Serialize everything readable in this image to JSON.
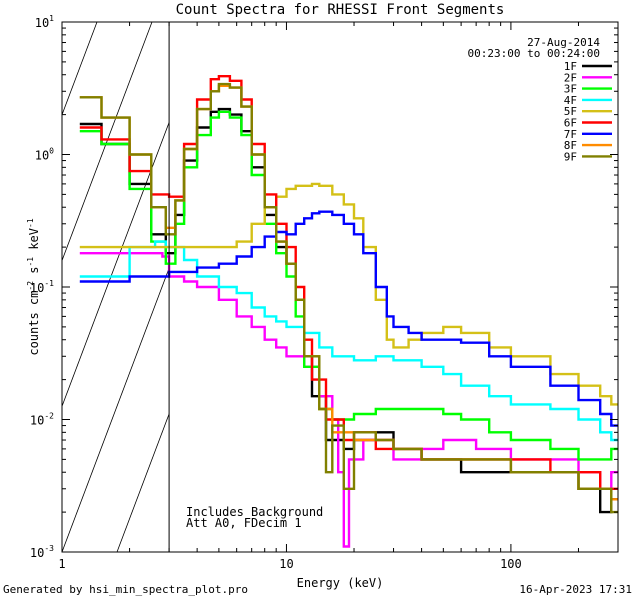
{
  "chart_data": {
    "type": "line",
    "title": "Count Spectra for RHESSI Front Segments",
    "xlabel": "Energy (keV)",
    "ylabel_parts": [
      "counts cm",
      "-2",
      " s",
      "-1",
      " keV",
      "-1"
    ],
    "xscale": "log",
    "yscale": "log",
    "xlim": [
      1,
      300
    ],
    "ylim": [
      0.001,
      10
    ],
    "x_ticks": [
      {
        "value": 1,
        "label": "1"
      },
      {
        "value": 10,
        "label": "10"
      },
      {
        "value": 100,
        "label": "100"
      }
    ],
    "y_ticks": [
      {
        "value": 0.001,
        "base": "10",
        "exp": "-3"
      },
      {
        "value": 0.01,
        "base": "10",
        "exp": "-2"
      },
      {
        "value": 0.1,
        "base": "10",
        "exp": "-1"
      },
      {
        "value": 1,
        "base": "10",
        "exp": "0"
      },
      {
        "value": 10,
        "base": "10",
        "exp": "1"
      }
    ],
    "date": "27-Aug-2014",
    "time_range": "00:23:00 to 00:24:00",
    "hatched_region_below_keV": 3,
    "annotations": [
      "Includes Background",
      "Att A0, FDecim 1"
    ],
    "series": [
      {
        "name": "1F",
        "color": "#000000",
        "points": [
          [
            1.2,
            1.7
          ],
          [
            1.5,
            1.2
          ],
          [
            2.0,
            0.6
          ],
          [
            2.5,
            0.25
          ],
          [
            2.9,
            0.18
          ],
          [
            3.2,
            0.35
          ],
          [
            3.5,
            0.9
          ],
          [
            4.0,
            1.6
          ],
          [
            4.6,
            2.1
          ],
          [
            5.0,
            2.2
          ],
          [
            5.6,
            2.0
          ],
          [
            6.3,
            1.5
          ],
          [
            7.0,
            0.8
          ],
          [
            8.0,
            0.35
          ],
          [
            9.0,
            0.2
          ],
          [
            10.0,
            0.15
          ],
          [
            11.0,
            0.08
          ],
          [
            12.0,
            0.03
          ],
          [
            13.0,
            0.015
          ],
          [
            15.0,
            0.007
          ],
          [
            18.0,
            0.006
          ],
          [
            20.0,
            0.007
          ],
          [
            25.0,
            0.008
          ],
          [
            30.0,
            0.006
          ],
          [
            40.0,
            0.005
          ],
          [
            50.0,
            0.005
          ],
          [
            60.0,
            0.004
          ],
          [
            80.0,
            0.004
          ],
          [
            100.0,
            0.004
          ],
          [
            150.0,
            0.004
          ],
          [
            200.0,
            0.003
          ],
          [
            250.0,
            0.002
          ],
          [
            280.0,
            0.0025
          ]
        ]
      },
      {
        "name": "2F",
        "color": "#ff00ff",
        "points": [
          [
            1.2,
            0.18
          ],
          [
            2.0,
            0.18
          ],
          [
            2.8,
            0.17
          ],
          [
            3.0,
            0.12
          ],
          [
            3.5,
            0.11
          ],
          [
            4.0,
            0.1
          ],
          [
            5.0,
            0.08
          ],
          [
            6.0,
            0.06
          ],
          [
            7.0,
            0.05
          ],
          [
            8.0,
            0.04
          ],
          [
            9.0,
            0.035
          ],
          [
            10.0,
            0.03
          ],
          [
            12.0,
            0.025
          ],
          [
            14.0,
            0.015
          ],
          [
            16.0,
            0.01
          ],
          [
            17.0,
            0.004
          ],
          [
            18.0,
            0.0011
          ],
          [
            19.0,
            0.005
          ],
          [
            22.0,
            0.007
          ],
          [
            30.0,
            0.005
          ],
          [
            40.0,
            0.006
          ],
          [
            50.0,
            0.007
          ],
          [
            70.0,
            0.006
          ],
          [
            100.0,
            0.005
          ],
          [
            150.0,
            0.005
          ],
          [
            200.0,
            0.004
          ],
          [
            250.0,
            0.003
          ],
          [
            280.0,
            0.004
          ]
        ]
      },
      {
        "name": "3F",
        "color": "#00ff00",
        "points": [
          [
            1.2,
            1.5
          ],
          [
            1.5,
            1.2
          ],
          [
            2.0,
            0.55
          ],
          [
            2.5,
            0.22
          ],
          [
            2.9,
            0.15
          ],
          [
            3.2,
            0.3
          ],
          [
            3.5,
            0.8
          ],
          [
            4.0,
            1.4
          ],
          [
            4.6,
            1.9
          ],
          [
            5.0,
            2.1
          ],
          [
            5.6,
            1.9
          ],
          [
            6.3,
            1.4
          ],
          [
            7.0,
            0.7
          ],
          [
            8.0,
            0.3
          ],
          [
            9.0,
            0.18
          ],
          [
            10.0,
            0.12
          ],
          [
            11.0,
            0.06
          ],
          [
            12.0,
            0.025
          ],
          [
            14.0,
            0.012
          ],
          [
            16.0,
            0.01
          ],
          [
            20.0,
            0.011
          ],
          [
            25.0,
            0.012
          ],
          [
            30.0,
            0.012
          ],
          [
            40.0,
            0.012
          ],
          [
            50.0,
            0.011
          ],
          [
            60.0,
            0.01
          ],
          [
            80.0,
            0.008
          ],
          [
            100.0,
            0.007
          ],
          [
            150.0,
            0.006
          ],
          [
            200.0,
            0.005
          ],
          [
            250.0,
            0.005
          ],
          [
            280.0,
            0.006
          ]
        ]
      },
      {
        "name": "4F",
        "color": "#00ffff",
        "points": [
          [
            1.2,
            0.12
          ],
          [
            2.0,
            0.2
          ],
          [
            2.6,
            0.22
          ],
          [
            2.9,
            0.2
          ],
          [
            3.5,
            0.16
          ],
          [
            4.0,
            0.12
          ],
          [
            5.0,
            0.1
          ],
          [
            6.0,
            0.09
          ],
          [
            7.0,
            0.07
          ],
          [
            8.0,
            0.06
          ],
          [
            9.0,
            0.055
          ],
          [
            10.0,
            0.05
          ],
          [
            12.0,
            0.045
          ],
          [
            14.0,
            0.035
          ],
          [
            16.0,
            0.03
          ],
          [
            18.0,
            0.03
          ],
          [
            20.0,
            0.028
          ],
          [
            25.0,
            0.03
          ],
          [
            30.0,
            0.028
          ],
          [
            40.0,
            0.025
          ],
          [
            50.0,
            0.022
          ],
          [
            60.0,
            0.018
          ],
          [
            80.0,
            0.015
          ],
          [
            100.0,
            0.013
          ],
          [
            150.0,
            0.012
          ],
          [
            200.0,
            0.01
          ],
          [
            250.0,
            0.008
          ],
          [
            280.0,
            0.007
          ]
        ]
      },
      {
        "name": "5F",
        "color": "#d4c017",
        "points": [
          [
            1.2,
            0.2
          ],
          [
            2.0,
            0.2
          ],
          [
            3.0,
            0.2
          ],
          [
            5.0,
            0.2
          ],
          [
            6.0,
            0.22
          ],
          [
            7.0,
            0.3
          ],
          [
            8.0,
            0.4
          ],
          [
            9.0,
            0.48
          ],
          [
            10.0,
            0.55
          ],
          [
            11.0,
            0.58
          ],
          [
            12.0,
            0.58
          ],
          [
            13.0,
            0.6
          ],
          [
            14.0,
            0.58
          ],
          [
            16.0,
            0.5
          ],
          [
            18.0,
            0.42
          ],
          [
            20.0,
            0.33
          ],
          [
            22.0,
            0.2
          ],
          [
            25.0,
            0.08
          ],
          [
            28.0,
            0.04
          ],
          [
            30.0,
            0.035
          ],
          [
            35.0,
            0.04
          ],
          [
            40.0,
            0.045
          ],
          [
            50.0,
            0.05
          ],
          [
            60.0,
            0.045
          ],
          [
            80.0,
            0.035
          ],
          [
            100.0,
            0.03
          ],
          [
            150.0,
            0.022
          ],
          [
            200.0,
            0.018
          ],
          [
            250.0,
            0.015
          ],
          [
            280.0,
            0.013
          ]
        ]
      },
      {
        "name": "6F",
        "color": "#ff0000",
        "points": [
          [
            1.2,
            1.6
          ],
          [
            1.5,
            1.3
          ],
          [
            2.0,
            0.75
          ],
          [
            2.5,
            0.5
          ],
          [
            3.0,
            0.48
          ],
          [
            3.5,
            1.2
          ],
          [
            4.0,
            2.6
          ],
          [
            4.6,
            3.7
          ],
          [
            5.0,
            3.9
          ],
          [
            5.6,
            3.6
          ],
          [
            6.3,
            2.6
          ],
          [
            7.0,
            1.2
          ],
          [
            8.0,
            0.5
          ],
          [
            9.0,
            0.3
          ],
          [
            10.0,
            0.2
          ],
          [
            11.0,
            0.1
          ],
          [
            12.0,
            0.04
          ],
          [
            13.0,
            0.02
          ],
          [
            15.0,
            0.01
          ],
          [
            18.0,
            0.007
          ],
          [
            20.0,
            0.008
          ],
          [
            25.0,
            0.006
          ],
          [
            30.0,
            0.006
          ],
          [
            40.0,
            0.005
          ],
          [
            50.0,
            0.005
          ],
          [
            70.0,
            0.005
          ],
          [
            100.0,
            0.005
          ],
          [
            150.0,
            0.004
          ],
          [
            200.0,
            0.004
          ],
          [
            250.0,
            0.003
          ],
          [
            280.0,
            0.003
          ]
        ]
      },
      {
        "name": "7F",
        "color": "#0000ff",
        "points": [
          [
            1.2,
            0.11
          ],
          [
            2.0,
            0.12
          ],
          [
            3.0,
            0.13
          ],
          [
            4.0,
            0.14
          ],
          [
            5.0,
            0.15
          ],
          [
            6.0,
            0.17
          ],
          [
            7.0,
            0.2
          ],
          [
            8.0,
            0.24
          ],
          [
            9.0,
            0.26
          ],
          [
            10.0,
            0.25
          ],
          [
            11.0,
            0.3
          ],
          [
            12.0,
            0.33
          ],
          [
            13.0,
            0.36
          ],
          [
            14.0,
            0.37
          ],
          [
            16.0,
            0.35
          ],
          [
            18.0,
            0.3
          ],
          [
            20.0,
            0.25
          ],
          [
            22.0,
            0.18
          ],
          [
            25.0,
            0.1
          ],
          [
            28.0,
            0.06
          ],
          [
            30.0,
            0.05
          ],
          [
            35.0,
            0.045
          ],
          [
            40.0,
            0.04
          ],
          [
            50.0,
            0.04
          ],
          [
            60.0,
            0.038
          ],
          [
            80.0,
            0.03
          ],
          [
            100.0,
            0.025
          ],
          [
            150.0,
            0.018
          ],
          [
            200.0,
            0.014
          ],
          [
            250.0,
            0.011
          ],
          [
            280.0,
            0.009
          ]
        ]
      },
      {
        "name": "8F",
        "color": "#ff8c00",
        "points": [
          [
            1.2,
            2.7
          ],
          [
            1.5,
            1.9
          ],
          [
            2.0,
            1.0
          ],
          [
            2.5,
            0.4
          ],
          [
            2.9,
            0.28
          ],
          [
            3.2,
            0.45
          ],
          [
            3.5,
            1.1
          ],
          [
            4.0,
            2.2
          ],
          [
            4.6,
            3.0
          ],
          [
            5.0,
            3.3
          ],
          [
            5.6,
            3.2
          ],
          [
            6.3,
            2.3
          ],
          [
            7.0,
            1.0
          ],
          [
            8.0,
            0.4
          ],
          [
            9.0,
            0.22
          ],
          [
            10.0,
            0.15
          ],
          [
            11.0,
            0.08
          ],
          [
            12.0,
            0.03
          ],
          [
            14.0,
            0.012
          ],
          [
            16.0,
            0.008
          ],
          [
            20.0,
            0.007
          ],
          [
            25.0,
            0.007
          ],
          [
            30.0,
            0.006
          ],
          [
            40.0,
            0.005
          ],
          [
            50.0,
            0.005
          ],
          [
            70.0,
            0.005
          ],
          [
            100.0,
            0.004
          ],
          [
            150.0,
            0.004
          ],
          [
            200.0,
            0.003
          ],
          [
            250.0,
            0.003
          ],
          [
            280.0,
            0.0025
          ]
        ]
      },
      {
        "name": "9F",
        "color": "#808000",
        "points": [
          [
            1.2,
            2.7
          ],
          [
            1.5,
            1.9
          ],
          [
            2.0,
            1.0
          ],
          [
            2.5,
            0.4
          ],
          [
            2.9,
            0.25
          ],
          [
            3.2,
            0.45
          ],
          [
            3.5,
            1.1
          ],
          [
            4.0,
            2.2
          ],
          [
            4.6,
            3.0
          ],
          [
            5.0,
            3.4
          ],
          [
            5.6,
            3.2
          ],
          [
            6.3,
            2.3
          ],
          [
            7.0,
            1.0
          ],
          [
            8.0,
            0.4
          ],
          [
            9.0,
            0.22
          ],
          [
            10.0,
            0.15
          ],
          [
            11.0,
            0.08
          ],
          [
            12.0,
            0.03
          ],
          [
            14.0,
            0.012
          ],
          [
            15.0,
            0.004
          ],
          [
            16.0,
            0.009
          ],
          [
            18.0,
            0.003
          ],
          [
            20.0,
            0.008
          ],
          [
            25.0,
            0.007
          ],
          [
            30.0,
            0.006
          ],
          [
            40.0,
            0.005
          ],
          [
            50.0,
            0.005
          ],
          [
            70.0,
            0.005
          ],
          [
            100.0,
            0.004
          ],
          [
            150.0,
            0.004
          ],
          [
            200.0,
            0.003
          ],
          [
            250.0,
            0.003
          ],
          [
            280.0,
            0.002
          ]
        ]
      }
    ]
  },
  "footer": {
    "generated_by": "Generated by hsi_min_spectra_plot.pro",
    "timestamp": "16-Apr-2023 17:31"
  }
}
